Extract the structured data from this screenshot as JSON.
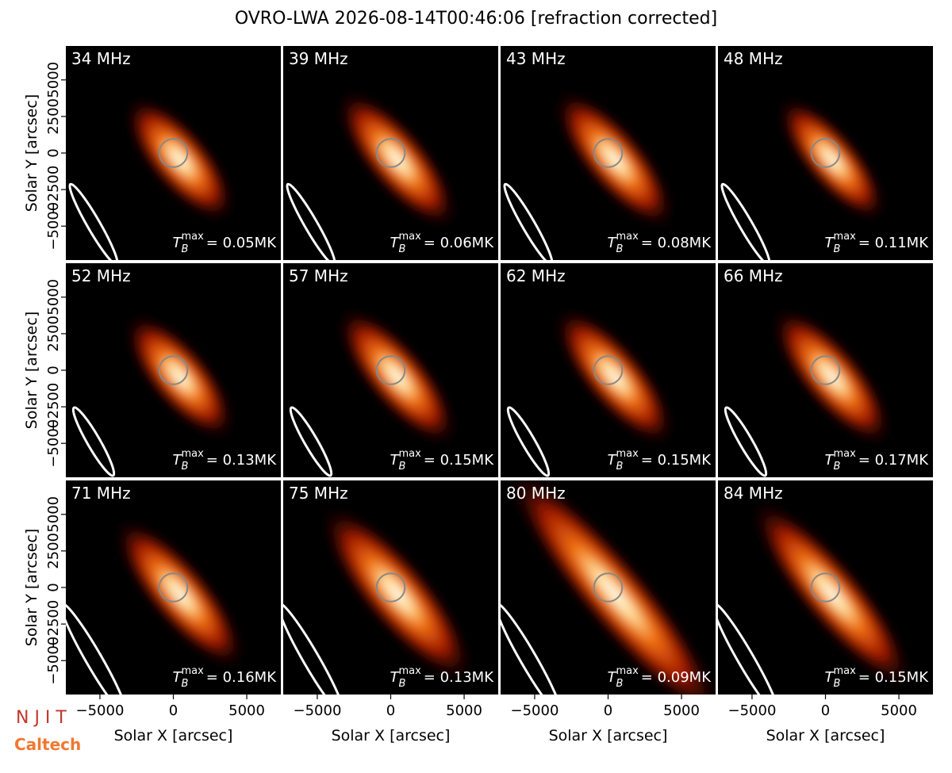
{
  "title": "OVRO-LWA 2026-08-14T00:46:06 [refraction corrected]",
  "tb_symbol": {
    "base": "T",
    "sub": "B",
    "sup": "max"
  },
  "logos": [
    "N J I T",
    "Caltech"
  ],
  "chart_data": [
    {
      "type": "image",
      "title": "34 MHz",
      "values": [
        0.05
      ],
      "value_labels": [
        "= 0.05MK"
      ],
      "xlim": [
        -7320,
        7320
      ],
      "ylim": [
        -7320,
        7320
      ],
      "ylabel": "Solar Y [arcsec]",
      "yticks": [
        {
          "value": -5000,
          "label": "−5000"
        },
        {
          "value": -2500,
          "label": "−2500"
        },
        0,
        2500,
        5000
      ]
    },
    {
      "type": "image",
      "title": "39 MHz",
      "values": [
        0.06
      ],
      "value_labels": [
        "= 0.06MK"
      ],
      "xlim": [
        -7320,
        7320
      ],
      "ylim": [
        -7320,
        7320
      ]
    },
    {
      "type": "image",
      "title": "43 MHz",
      "values": [
        0.08
      ],
      "value_labels": [
        "= 0.08MK"
      ],
      "xlim": [
        -7320,
        7320
      ],
      "ylim": [
        -7320,
        7320
      ]
    },
    {
      "type": "image",
      "title": "48 MHz",
      "values": [
        0.11
      ],
      "value_labels": [
        "= 0.11MK"
      ],
      "xlim": [
        -7320,
        7320
      ],
      "ylim": [
        -7320,
        7320
      ]
    },
    {
      "type": "image",
      "title": "52 MHz",
      "values": [
        0.13
      ],
      "value_labels": [
        "= 0.13MK"
      ],
      "xlim": [
        -7320,
        7320
      ],
      "ylim": [
        -7320,
        7320
      ],
      "ylabel": "Solar Y [arcsec]",
      "yticks": [
        {
          "value": -5000,
          "label": "−5000"
        },
        {
          "value": -2500,
          "label": "−2500"
        },
        0,
        2500,
        5000
      ]
    },
    {
      "type": "image",
      "title": "57 MHz",
      "values": [
        0.15
      ],
      "value_labels": [
        "= 0.15MK"
      ],
      "xlim": [
        -7320,
        7320
      ],
      "ylim": [
        -7320,
        7320
      ]
    },
    {
      "type": "image",
      "title": "62 MHz",
      "values": [
        0.15
      ],
      "value_labels": [
        "= 0.15MK"
      ],
      "xlim": [
        -7320,
        7320
      ],
      "ylim": [
        -7320,
        7320
      ]
    },
    {
      "type": "image",
      "title": "66 MHz",
      "values": [
        0.17
      ],
      "value_labels": [
        "= 0.17MK"
      ],
      "xlim": [
        -7320,
        7320
      ],
      "ylim": [
        -7320,
        7320
      ]
    },
    {
      "type": "image",
      "title": "71 MHz",
      "values": [
        0.16
      ],
      "value_labels": [
        "= 0.16MK"
      ],
      "xlim": [
        -7320,
        7320
      ],
      "ylim": [
        -7320,
        7320
      ],
      "ylabel": "Solar Y [arcsec]",
      "yticks": [
        {
          "value": -5000,
          "label": "−5000"
        },
        {
          "value": -2500,
          "label": "−2500"
        },
        0,
        2500,
        5000
      ],
      "xlabel": "Solar X [arcsec]",
      "xticks": [
        {
          "value": -5000,
          "label": "−5000"
        },
        0,
        5000
      ]
    },
    {
      "type": "image",
      "title": "75 MHz",
      "values": [
        0.13
      ],
      "value_labels": [
        "= 0.13MK"
      ],
      "xlim": [
        -7320,
        7320
      ],
      "ylim": [
        -7320,
        7320
      ],
      "xlabel": "Solar X [arcsec]",
      "xticks": [
        {
          "value": -5000,
          "label": "−5000"
        },
        0,
        5000
      ]
    },
    {
      "type": "image",
      "title": "80 MHz",
      "values": [
        0.09
      ],
      "value_labels": [
        "= 0.09MK"
      ],
      "xlim": [
        -7320,
        7320
      ],
      "ylim": [
        -7320,
        7320
      ],
      "xlabel": "Solar X [arcsec]",
      "xticks": [
        {
          "value": -5000,
          "label": "−5000"
        },
        0,
        5000
      ]
    },
    {
      "type": "image",
      "title": "84 MHz",
      "values": [
        0.15
      ],
      "value_labels": [
        "= 0.15MK"
      ],
      "xlim": [
        -7320,
        7320
      ],
      "ylim": [
        -7320,
        7320
      ],
      "xlabel": "Solar X [arcsec]",
      "xticks": [
        {
          "value": -5000,
          "label": "−5000"
        },
        0,
        5000
      ]
    }
  ]
}
